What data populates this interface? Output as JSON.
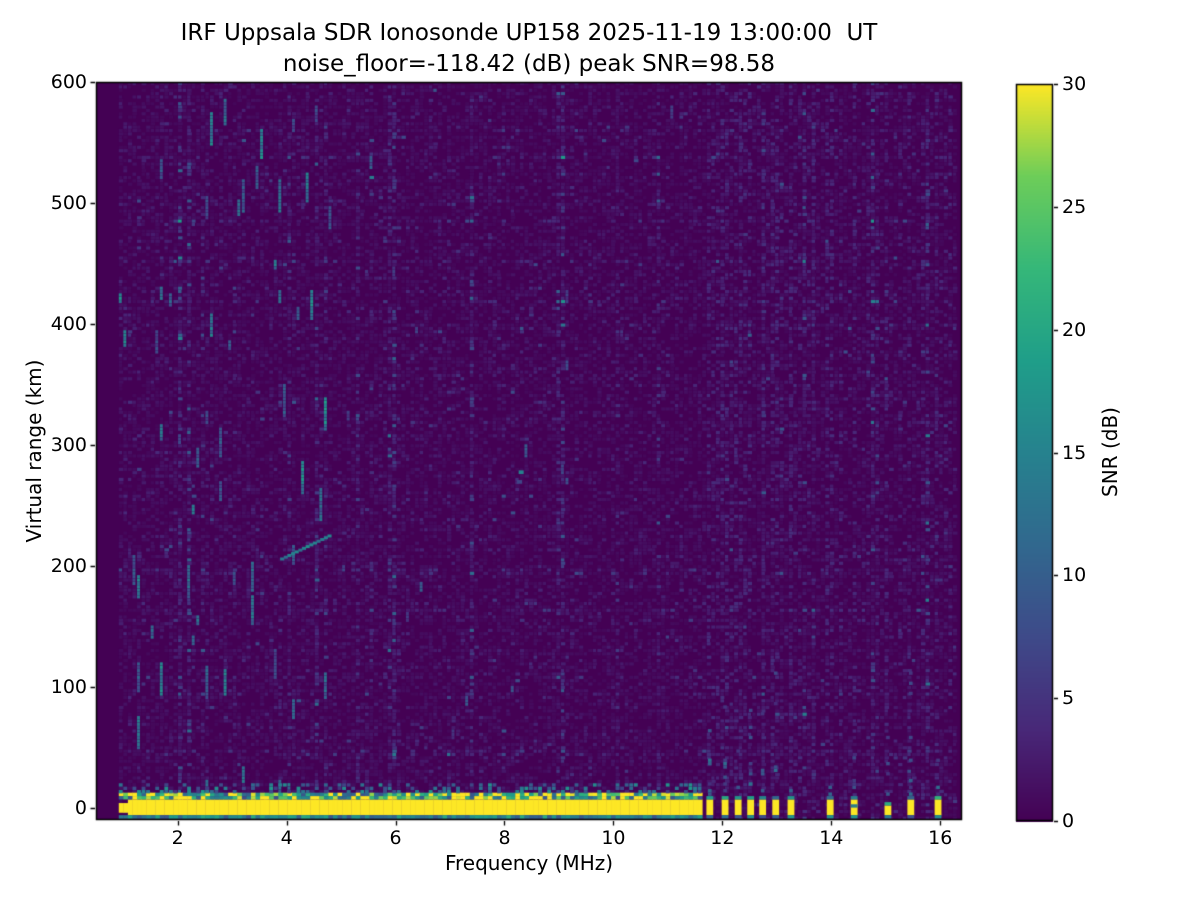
{
  "figure": {
    "title": "IRF Uppsala SDR Ionosonde UP158 2025-11-19 13:00:00  UT",
    "subtitle": "noise_floor=-118.42 (dB) peak SNR=98.58",
    "x_axis": {
      "label": "Frequency (MHz)",
      "ticks": [
        2,
        4,
        6,
        8,
        10,
        12,
        14,
        16
      ]
    },
    "y_axis": {
      "label": "Virtual range (km)",
      "ticks": [
        0,
        100,
        200,
        300,
        400,
        500,
        600
      ]
    },
    "colorbar": {
      "label": "SNR (dB)",
      "ticks": [
        0,
        5,
        10,
        15,
        20,
        25,
        30
      ]
    }
  },
  "chart_data": {
    "type": "heatmap",
    "title": "IRF Uppsala SDR Ionosonde UP158 2025-11-19 13:00:00  UT",
    "subtitle": "noise_floor=-118.42 (dB) peak SNR=98.58",
    "station": "UP158",
    "timestamp_ut": "2025-11-19 13:00:00",
    "noise_floor_db": -118.42,
    "peak_snr_db": 98.58,
    "xlabel": "Frequency (MHz)",
    "ylabel": "Virtual range (km)",
    "xlim": [
      0.5,
      16.4
    ],
    "ylim": [
      -10,
      600
    ],
    "xticks": [
      2,
      4,
      6,
      8,
      10,
      12,
      14,
      16
    ],
    "yticks": [
      0,
      100,
      200,
      300,
      400,
      500,
      600
    ],
    "colormap": "viridis",
    "background_color": "#440154",
    "peak_color": "#fde725",
    "colorbar": {
      "label": "SNR (dB)",
      "min": 0,
      "max": 30,
      "ticks": [
        0,
        5,
        10,
        15,
        20,
        25,
        30
      ],
      "position": "right"
    },
    "data_freq_range_mhz": [
      0.92,
      16.3
    ],
    "features": {
      "ground_pulse_band": {
        "freq_mhz": [
          0.95,
          11.65
        ],
        "range_km": [
          -6,
          7
        ],
        "snr_db": 30
      },
      "band_halo_above": {
        "range_km": [
          7,
          19
        ],
        "snr_db": [
          5,
          30
        ]
      },
      "band_line_below": {
        "range_km": [
          -9,
          -6
        ],
        "snr_db": [
          9,
          21
        ]
      },
      "discrete_pulses_mhz": [
        11.77,
        12.05,
        12.29,
        12.52,
        12.74,
        12.98,
        13.26,
        13.98,
        14.42,
        15.04,
        15.46,
        15.96
      ],
      "echo_trace": {
        "freq_mhz": [
          3.88,
          4.75
        ],
        "range_km": [
          207,
          226
        ],
        "snr_db": 14
      },
      "echo_blips": [
        {
          "freq_mhz": 8.26,
          "range_km": 279,
          "snr_db": 15
        },
        {
          "freq_mhz": 8.23,
          "range_km": 271,
          "snr_db": 7
        }
      ],
      "noise": {
        "background_speckle_db": [
          0,
          3
        ],
        "teal_streak_region_mhz": [
          0.95,
          4.9
        ],
        "teal_streak_db": [
          7,
          16
        ],
        "rfi_columns_mhz": [
          11.73,
          11.88,
          12.15,
          12.42,
          13.4,
          13.65,
          14.2,
          14.68,
          15.25,
          15.7,
          16.15
        ]
      }
    }
  }
}
